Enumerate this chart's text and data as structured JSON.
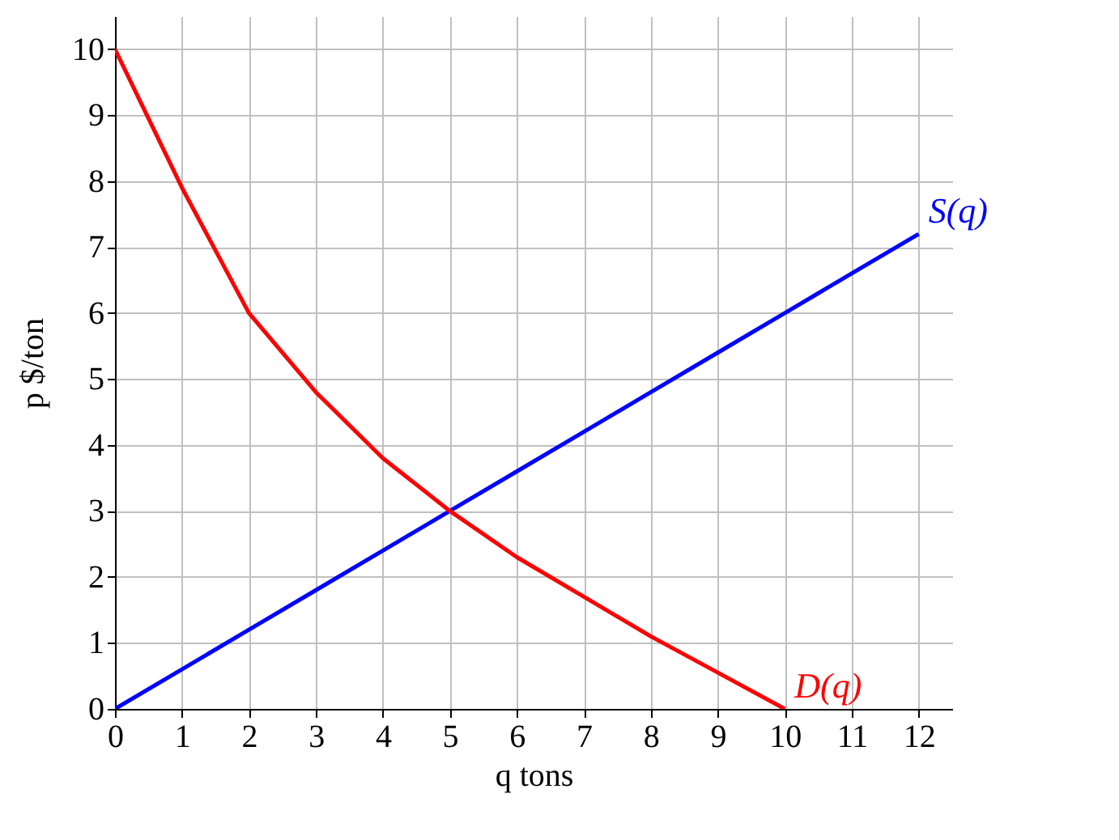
{
  "chart_data": {
    "type": "line",
    "xlabel": "q tons",
    "ylabel": "p $/ton",
    "x": [
      0,
      1,
      2,
      3,
      4,
      5,
      6,
      7,
      8,
      9,
      10,
      11,
      12
    ],
    "series": [
      {
        "name": "S(q)",
        "color": "#0000ff",
        "values": [
          0,
          0.6,
          1.2,
          1.8,
          2.4,
          3,
          3.6,
          4.2,
          4.8,
          5.4,
          6,
          6.6,
          7.2
        ]
      },
      {
        "name": "D(q)",
        "color": "#ff0000",
        "values": [
          10,
          7.9,
          6,
          4.8,
          3.8,
          3,
          2.3,
          1.7,
          1.1,
          0.55,
          0,
          null,
          null
        ]
      }
    ],
    "xlim": [
      0,
      12.5
    ],
    "ylim": [
      0,
      10.5
    ],
    "xticks": [
      0,
      1,
      2,
      3,
      4,
      5,
      6,
      7,
      8,
      9,
      10,
      11,
      12
    ],
    "yticks": [
      0,
      1,
      2,
      3,
      4,
      5,
      6,
      7,
      8,
      9,
      10
    ],
    "grid": true,
    "legend": false,
    "marker": "none",
    "line_style": "solid"
  }
}
